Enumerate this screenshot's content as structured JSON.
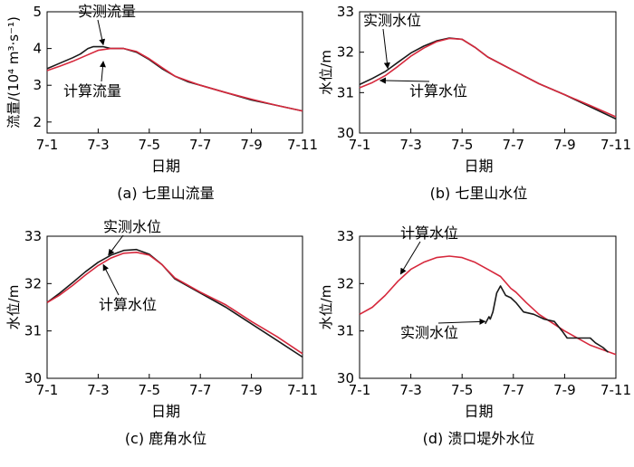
{
  "style": {
    "measured_color": "#1a1a1a",
    "computed_color": "#d6283c",
    "axis_color": "#000000"
  },
  "chart_data": [
    {
      "type": "line",
      "panel_label": "(a) 七里山流量",
      "xlabel": "日期",
      "ylabel": "流量/(10⁴ m³·s⁻¹)",
      "x_ticks": [
        "7-1",
        "7-3",
        "7-5",
        "7-7",
        "7-9",
        "7-11"
      ],
      "y_ticks": [
        2,
        3,
        4,
        5
      ],
      "xlim": [
        0,
        10
      ],
      "ylim": [
        1.7,
        5.0
      ],
      "series": [
        {
          "name": "实测流量",
          "role": "measured",
          "x": [
            0,
            0.5,
            1.0,
            1.3,
            1.6,
            1.8,
            2.2,
            2.5,
            3.0,
            3.5,
            4.0,
            4.5,
            5.0,
            5.5,
            6.0,
            7.0,
            8.0,
            9.0,
            10.0
          ],
          "y": [
            3.45,
            3.6,
            3.75,
            3.85,
            4.0,
            4.05,
            4.05,
            4.0,
            4.0,
            3.9,
            3.7,
            3.45,
            3.25,
            3.1,
            3.0,
            2.8,
            2.6,
            2.45,
            2.3
          ]
        },
        {
          "name": "计算流量",
          "role": "computed",
          "x": [
            0,
            0.5,
            1.0,
            1.5,
            2.0,
            2.5,
            3.0,
            3.5,
            4.0,
            4.5,
            5.0,
            5.5,
            6.0,
            7.0,
            8.0,
            9.0,
            10.0
          ],
          "y": [
            3.4,
            3.52,
            3.65,
            3.8,
            3.95,
            4.0,
            4.0,
            3.92,
            3.72,
            3.48,
            3.25,
            3.12,
            3.0,
            2.8,
            2.62,
            2.45,
            2.3
          ]
        }
      ],
      "annotations": [
        {
          "text": "实测流量",
          "series": "measured",
          "arrow_at": [
            2.2,
            4.1
          ]
        },
        {
          "text": "计算流量",
          "series": "computed",
          "arrow_at": [
            2.2,
            3.65
          ]
        }
      ]
    },
    {
      "type": "line",
      "panel_label": "(b) 七里山水位",
      "xlabel": "日期",
      "ylabel": "水位/m",
      "x_ticks": [
        "7-1",
        "7-3",
        "7-5",
        "7-7",
        "7-9",
        "7-11"
      ],
      "y_ticks": [
        30,
        31,
        32,
        33
      ],
      "xlim": [
        0,
        10
      ],
      "ylim": [
        30,
        33
      ],
      "series": [
        {
          "name": "实测水位",
          "role": "measured",
          "x": [
            0,
            0.5,
            1.0,
            1.5,
            2.0,
            2.5,
            3.0,
            3.5,
            4.0,
            4.5,
            5.0,
            6.0,
            7.0,
            8.0,
            9.0,
            10.0
          ],
          "y": [
            31.2,
            31.35,
            31.52,
            31.75,
            31.98,
            32.15,
            32.28,
            32.35,
            32.32,
            32.12,
            31.88,
            31.55,
            31.22,
            30.95,
            30.65,
            30.35
          ]
        },
        {
          "name": "计算水位",
          "role": "computed",
          "x": [
            0,
            0.5,
            1.0,
            1.5,
            2.0,
            2.5,
            3.0,
            3.5,
            4.0,
            4.5,
            5.0,
            6.0,
            7.0,
            8.0,
            9.0,
            10.0
          ],
          "y": [
            31.12,
            31.25,
            31.42,
            31.65,
            31.9,
            32.1,
            32.26,
            32.34,
            32.32,
            32.12,
            31.88,
            31.55,
            31.22,
            30.95,
            30.68,
            30.4
          ]
        }
      ],
      "annotations": [
        {
          "text": "实测水位",
          "series": "measured",
          "arrow_at": [
            1.1,
            31.6
          ]
        },
        {
          "text": "计算水位",
          "series": "computed",
          "arrow_at": [
            0.8,
            31.3
          ]
        }
      ]
    },
    {
      "type": "line",
      "panel_label": "(c) 鹿角水位",
      "xlabel": "日期",
      "ylabel": "水位/m",
      "x_ticks": [
        "7-1",
        "7-3",
        "7-5",
        "7-7",
        "7-9",
        "7-11"
      ],
      "y_ticks": [
        30,
        31,
        32,
        33
      ],
      "xlim": [
        0,
        10
      ],
      "ylim": [
        30,
        33
      ],
      "series": [
        {
          "name": "实测水位",
          "role": "measured",
          "x": [
            0,
            0.5,
            1.0,
            1.5,
            2.0,
            2.5,
            3.0,
            3.5,
            4.0,
            4.5,
            5.0,
            6.0,
            7.0,
            8.0,
            9.0,
            10.0
          ],
          "y": [
            31.6,
            31.8,
            32.02,
            32.25,
            32.45,
            32.6,
            32.7,
            32.72,
            32.62,
            32.4,
            32.1,
            31.8,
            31.5,
            31.15,
            30.8,
            30.45
          ]
        },
        {
          "name": "计算水位",
          "role": "computed",
          "x": [
            0,
            0.5,
            1.0,
            1.5,
            2.0,
            2.5,
            3.0,
            3.5,
            4.0,
            4.5,
            5.0,
            6.0,
            7.0,
            8.0,
            9.0,
            10.0
          ],
          "y": [
            31.6,
            31.76,
            31.96,
            32.18,
            32.38,
            32.54,
            32.64,
            32.66,
            32.6,
            32.4,
            32.12,
            31.82,
            31.55,
            31.2,
            30.88,
            30.52
          ]
        }
      ],
      "annotations": [
        {
          "text": "实测水位",
          "series": "measured",
          "arrow_at": [
            2.4,
            32.6
          ]
        },
        {
          "text": "计算水位",
          "series": "computed",
          "arrow_at": [
            2.2,
            32.4
          ]
        }
      ]
    },
    {
      "type": "line",
      "panel_label": "(d) 溃口堤外水位",
      "xlabel": "日期",
      "ylabel": "水位/m",
      "x_ticks": [
        "7-1",
        "7-3",
        "7-5",
        "7-7",
        "7-9",
        "7-11"
      ],
      "y_ticks": [
        30,
        31,
        32,
        33
      ],
      "xlim": [
        0,
        10
      ],
      "ylim": [
        30,
        33
      ],
      "series": [
        {
          "name": "计算水位",
          "role": "computed",
          "x": [
            0,
            0.5,
            1.0,
            1.5,
            2.0,
            2.5,
            3.0,
            3.5,
            4.0,
            4.5,
            5.0,
            5.5,
            5.9,
            6.1,
            6.5,
            7.0,
            8.0,
            9.0,
            10.0
          ],
          "y": [
            31.35,
            31.5,
            31.75,
            32.05,
            32.3,
            32.45,
            32.55,
            32.58,
            32.55,
            32.45,
            32.3,
            32.15,
            31.9,
            31.82,
            31.6,
            31.35,
            31.0,
            30.7,
            30.5
          ]
        },
        {
          "name": "实测水位",
          "role": "measured",
          "x": [
            4.9,
            5.05,
            5.1,
            5.2,
            5.35,
            5.5,
            5.7,
            5.9,
            6.1,
            6.4,
            6.8,
            7.2,
            7.6,
            7.9,
            8.1,
            8.5,
            9.0,
            9.2,
            9.5,
            9.7
          ],
          "y": [
            31.15,
            31.3,
            31.25,
            31.4,
            31.8,
            31.95,
            31.75,
            31.7,
            31.6,
            31.4,
            31.35,
            31.25,
            31.2,
            31.0,
            30.85,
            30.85,
            30.85,
            30.75,
            30.65,
            30.55
          ]
        }
      ],
      "annotations": [
        {
          "text": "计算水位",
          "series": "computed",
          "arrow_at": [
            1.6,
            32.2
          ]
        },
        {
          "text": "实测水位",
          "series": "measured",
          "arrow_at": [
            4.9,
            31.2
          ]
        }
      ]
    }
  ]
}
